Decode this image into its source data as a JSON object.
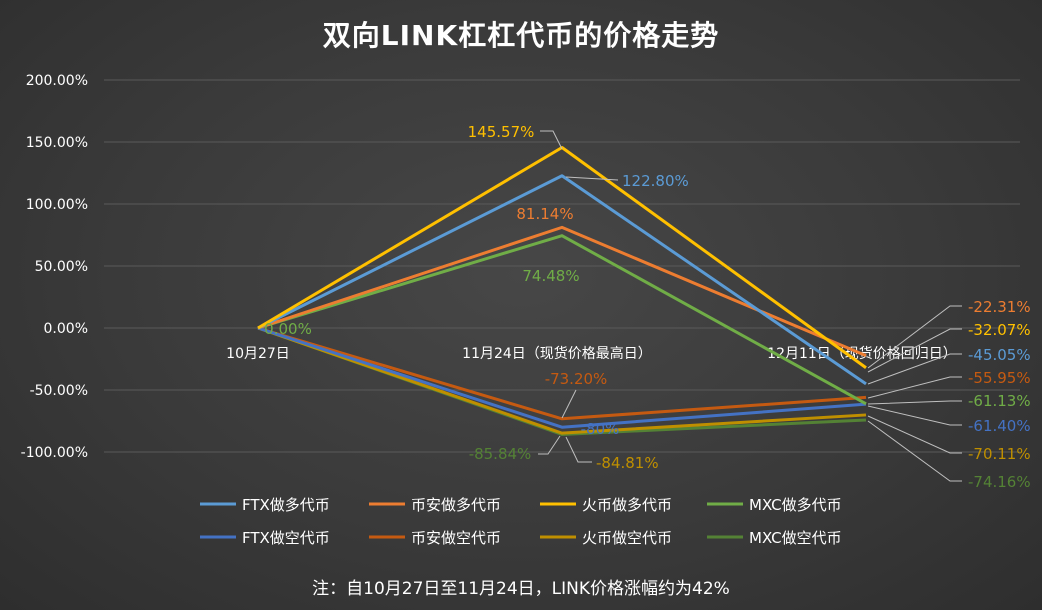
{
  "title": "双向LINK杠杠代币的价格走势",
  "note": "注：自10月27日至11月24日，LINK价格涨幅约为42%",
  "chart_data": {
    "type": "line",
    "categories": [
      "10月27日",
      "11月24日（现货价格最高日）",
      "12月11日（现货价格回归日）"
    ],
    "ylim": [
      -100,
      200
    ],
    "yticks": [
      "200.00%",
      "150.00%",
      "100.00%",
      "50.00%",
      "0.00%",
      "-50.00%",
      "-100.00%"
    ],
    "grid": true,
    "legend_position": "bottom",
    "series": [
      {
        "name": "FTX做多代币",
        "color": "#5b9bd5",
        "values": [
          0,
          122.8,
          -45.05
        ],
        "labels": [
          "",
          "122.80%",
          "-45.05%"
        ]
      },
      {
        "name": "币安做多代币",
        "color": "#ed7d31",
        "values": [
          0,
          81.14,
          -22.31
        ],
        "labels": [
          "",
          "81.14%",
          "-22.31%"
        ]
      },
      {
        "name": "火币做多代币",
        "color": "#ffc000",
        "values": [
          0,
          145.57,
          -32.07
        ],
        "labels": [
          "",
          "145.57%",
          "-32.07%"
        ]
      },
      {
        "name": "MXC做多代币",
        "color": "#70ad47",
        "values": [
          0,
          74.48,
          -61.13
        ],
        "labels": [
          "0.00%",
          "74.48%",
          "-61.13%"
        ]
      },
      {
        "name": "FTX做空代币",
        "color": "#4472c4",
        "values": [
          0,
          -80,
          -61.4
        ],
        "labels": [
          "",
          "-80%",
          "-61.40%"
        ]
      },
      {
        "name": "币安做空代币",
        "color": "#c55a11",
        "values": [
          0,
          -73.2,
          -55.95
        ],
        "labels": [
          "",
          "-73.20%",
          "-55.95%"
        ]
      },
      {
        "name": "火币做空代币",
        "color": "#bf8f00",
        "values": [
          0,
          -84.81,
          -70.11
        ],
        "labels": [
          "",
          "-84.81%",
          "-70.11%"
        ]
      },
      {
        "name": "MXC做空代币",
        "color": "#548235",
        "values": [
          0,
          -85.84,
          -74.16
        ],
        "labels": [
          "",
          "-85.84%",
          "-74.16%"
        ]
      }
    ]
  }
}
